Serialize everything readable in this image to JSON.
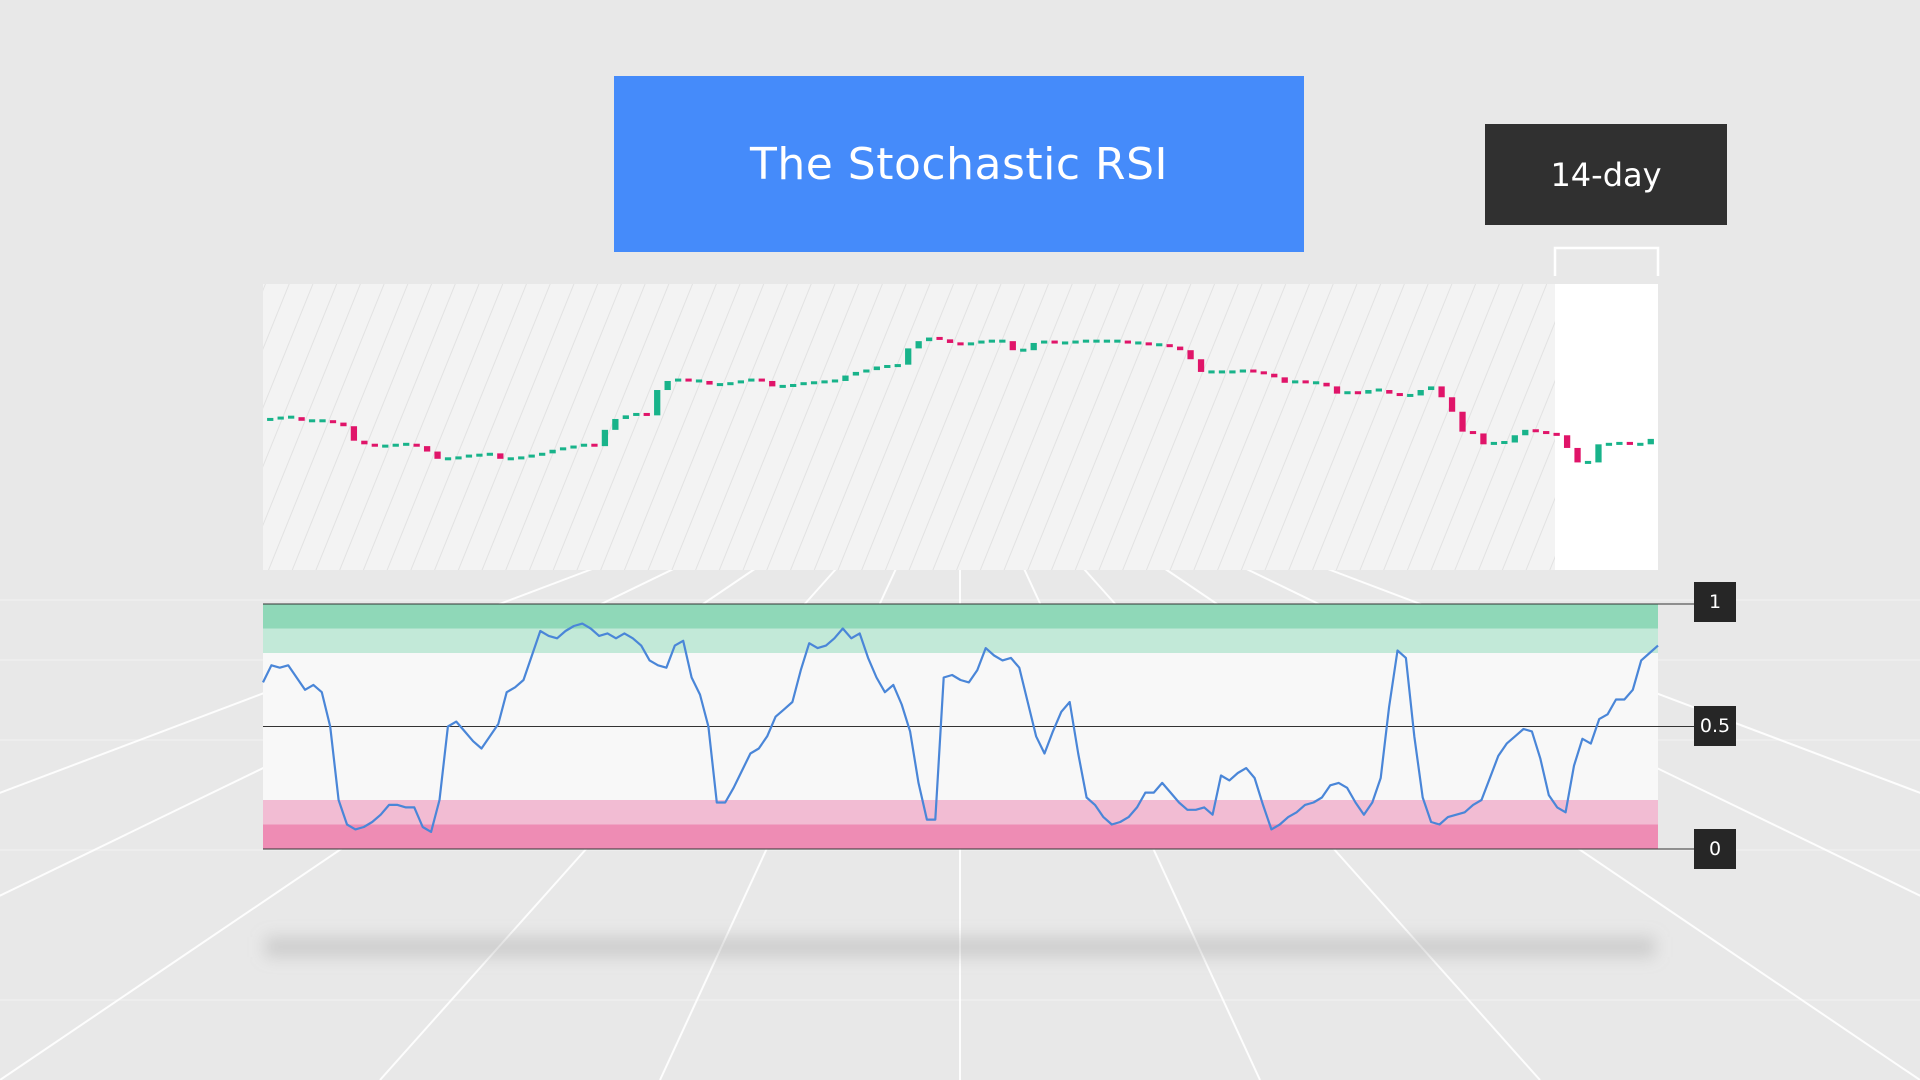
{
  "title": "The Stochastic RSI",
  "period_label": "14-day",
  "colors": {
    "background": "#e8e8e8",
    "title_box": "#458bfa",
    "period_box": "#303030",
    "bullish_candle": "#18b38a",
    "bearish_candle": "#e01469",
    "stoch_rsi_line": "#4a86d8",
    "overbought_zone": "#8fd8b8",
    "oversold_zone": "#ee8cb4"
  },
  "chart_data": [
    {
      "type": "candlestick",
      "title": "",
      "highlighted_window": "14-day",
      "close": [
        0.42,
        0.43,
        0.43,
        0.41,
        0.41,
        0.41,
        0.4,
        0.38,
        0.3,
        0.28,
        0.27,
        0.27,
        0.28,
        0.28,
        0.27,
        0.24,
        0.2,
        0.2,
        0.21,
        0.22,
        0.22,
        0.23,
        0.2,
        0.2,
        0.21,
        0.22,
        0.23,
        0.25,
        0.26,
        0.27,
        0.28,
        0.27,
        0.36,
        0.42,
        0.44,
        0.45,
        0.44,
        0.58,
        0.63,
        0.64,
        0.63,
        0.63,
        0.61,
        0.61,
        0.62,
        0.63,
        0.64,
        0.63,
        0.6,
        0.6,
        0.61,
        0.62,
        0.62,
        0.63,
        0.63,
        0.66,
        0.68,
        0.69,
        0.71,
        0.71,
        0.72,
        0.81,
        0.85,
        0.87,
        0.86,
        0.84,
        0.83,
        0.84,
        0.85,
        0.85,
        0.85,
        0.8,
        0.8,
        0.84,
        0.85,
        0.84,
        0.84,
        0.85,
        0.85,
        0.85,
        0.85,
        0.85,
        0.84,
        0.84,
        0.83,
        0.83,
        0.82,
        0.8,
        0.75,
        0.68,
        0.68,
        0.68,
        0.68,
        0.69,
        0.68,
        0.67,
        0.65,
        0.62,
        0.63,
        0.62,
        0.62,
        0.6,
        0.56,
        0.57,
        0.56,
        0.58,
        0.58,
        0.56,
        0.55,
        0.55,
        0.58,
        0.6,
        0.54,
        0.46,
        0.35,
        0.34,
        0.28,
        0.29,
        0.29,
        0.33,
        0.36,
        0.35,
        0.34,
        0.33,
        0.26,
        0.18,
        0.18,
        0.28,
        0.28,
        0.29,
        0.28,
        0.28,
        0.31
      ],
      "forecast_start_index": 120
    },
    {
      "type": "line",
      "title": "",
      "series": [
        {
          "values": [
            0.68,
            0.75,
            0.74,
            0.75,
            0.7,
            0.65,
            0.67,
            0.64,
            0.5,
            0.2,
            0.1,
            0.08,
            0.09,
            0.11,
            0.14,
            0.18,
            0.18,
            0.17,
            0.17,
            0.09,
            0.07,
            0.2,
            0.5,
            0.52,
            0.48,
            0.44,
            0.41,
            0.46,
            0.51,
            0.64,
            0.66,
            0.69,
            0.79,
            0.89,
            0.87,
            0.86,
            0.89,
            0.91,
            0.92,
            0.9,
            0.87,
            0.88,
            0.86,
            0.88,
            0.86,
            0.83,
            0.77,
            0.75,
            0.74,
            0.83,
            0.85,
            0.7,
            0.63,
            0.5,
            0.19,
            0.19,
            0.25,
            0.32,
            0.39,
            0.41,
            0.46,
            0.54,
            0.57,
            0.6,
            0.73,
            0.84,
            0.82,
            0.83,
            0.86,
            0.9,
            0.86,
            0.88,
            0.78,
            0.7,
            0.64,
            0.67,
            0.59,
            0.48,
            0.27,
            0.12,
            0.12,
            0.7,
            0.71,
            0.69,
            0.68,
            0.73,
            0.82,
            0.79,
            0.77,
            0.78,
            0.74,
            0.6,
            0.46,
            0.39,
            0.48,
            0.56,
            0.6,
            0.39,
            0.21,
            0.18,
            0.13,
            0.1,
            0.11,
            0.13,
            0.17,
            0.23,
            0.23,
            0.27,
            0.23,
            0.19,
            0.16,
            0.16,
            0.17,
            0.14,
            0.3,
            0.28,
            0.31,
            0.33,
            0.29,
            0.18,
            0.08,
            0.1,
            0.13,
            0.15,
            0.18,
            0.19,
            0.21,
            0.26,
            0.27,
            0.25,
            0.19,
            0.14,
            0.19,
            0.29,
            0.58,
            0.81,
            0.78,
            0.46,
            0.21,
            0.11,
            0.1,
            0.13,
            0.14,
            0.15,
            0.18,
            0.2,
            0.29,
            0.38,
            0.43,
            0.46,
            0.49,
            0.48,
            0.37,
            0.22,
            0.17,
            0.15,
            0.34,
            0.45,
            0.43,
            0.53,
            0.55,
            0.61,
            0.61,
            0.65,
            0.77,
            0.8,
            0.83
          ]
        }
      ],
      "ylim": [
        0,
        1
      ],
      "yticks": [
        "1",
        "0.5",
        "0"
      ],
      "bands": [
        {
          "from": 0.9,
          "to": 1.0,
          "color": "#8fd8b8"
        },
        {
          "from": 0.8,
          "to": 0.9,
          "color": "#c2e9d8"
        },
        {
          "from": 0.1,
          "to": 0.2,
          "color": "#f2bcd3"
        },
        {
          "from": 0.0,
          "to": 0.1,
          "color": "#ee8cb4"
        }
      ]
    }
  ]
}
